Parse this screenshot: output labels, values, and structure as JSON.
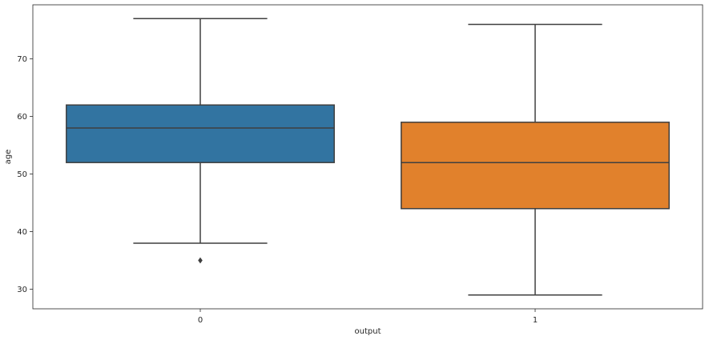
{
  "chart_data": {
    "type": "box",
    "xlabel": "output",
    "ylabel": "age",
    "categories": [
      "0",
      "1"
    ],
    "ylim": [
      26.6,
      79.4
    ],
    "yticks": [
      30,
      40,
      50,
      60,
      70
    ],
    "grid": false,
    "legend": "none",
    "boxes": [
      {
        "category": "0",
        "whisker_low": 38,
        "q1": 52,
        "median": 58,
        "q3": 62,
        "whisker_high": 77,
        "outliers": [
          35
        ],
        "color": "#3274a1"
      },
      {
        "category": "1",
        "whisker_low": 29,
        "q1": 44,
        "median": 52,
        "q3": 59,
        "whisker_high": 76,
        "outliers": [],
        "color": "#e1812c"
      }
    ]
  }
}
